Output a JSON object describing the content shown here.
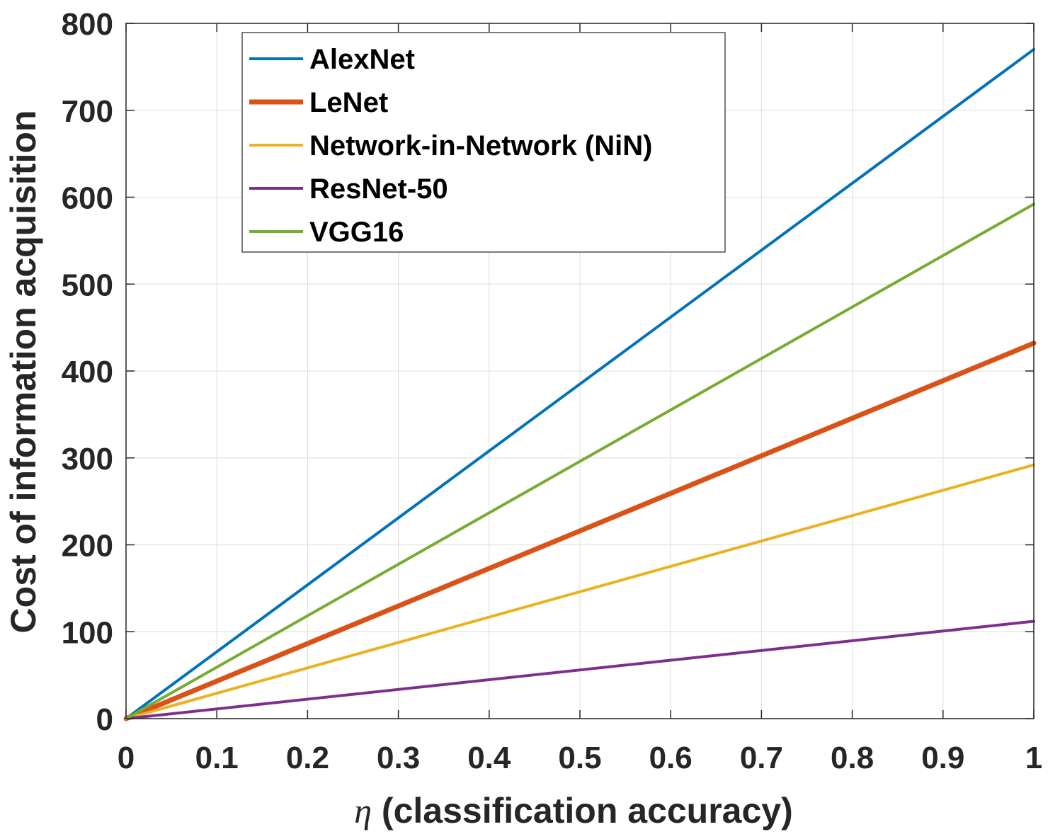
{
  "chart_data": {
    "type": "line",
    "xlabel_symbol": "η",
    "xlabel_text": " (classification accuracy)",
    "ylabel": "Cost of information acquisition",
    "xlim": [
      0,
      1
    ],
    "ylim": [
      0,
      800
    ],
    "xticks": [
      "0",
      "0.1",
      "0.2",
      "0.3",
      "0.4",
      "0.5",
      "0.6",
      "0.7",
      "0.8",
      "0.9",
      "1"
    ],
    "yticks": [
      "0",
      "100",
      "200",
      "300",
      "400",
      "500",
      "600",
      "700",
      "800"
    ],
    "grid": true,
    "legend_position": "top-left",
    "x": [
      0,
      1
    ],
    "series": [
      {
        "name": "AlexNet",
        "values": [
          0,
          770
        ],
        "color": "#0072BD",
        "width": "normal"
      },
      {
        "name": "LeNet",
        "values": [
          0,
          432
        ],
        "color": "#D95319",
        "width": "thick"
      },
      {
        "name": "Network-in-Network (NiN)",
        "values": [
          0,
          292
        ],
        "color": "#EDB120",
        "width": "normal"
      },
      {
        "name": "ResNet-50",
        "values": [
          0,
          112
        ],
        "color": "#7E2F8E",
        "width": "normal"
      },
      {
        "name": "VGG16",
        "values": [
          0,
          592
        ],
        "color": "#77AC30",
        "width": "normal"
      }
    ]
  }
}
